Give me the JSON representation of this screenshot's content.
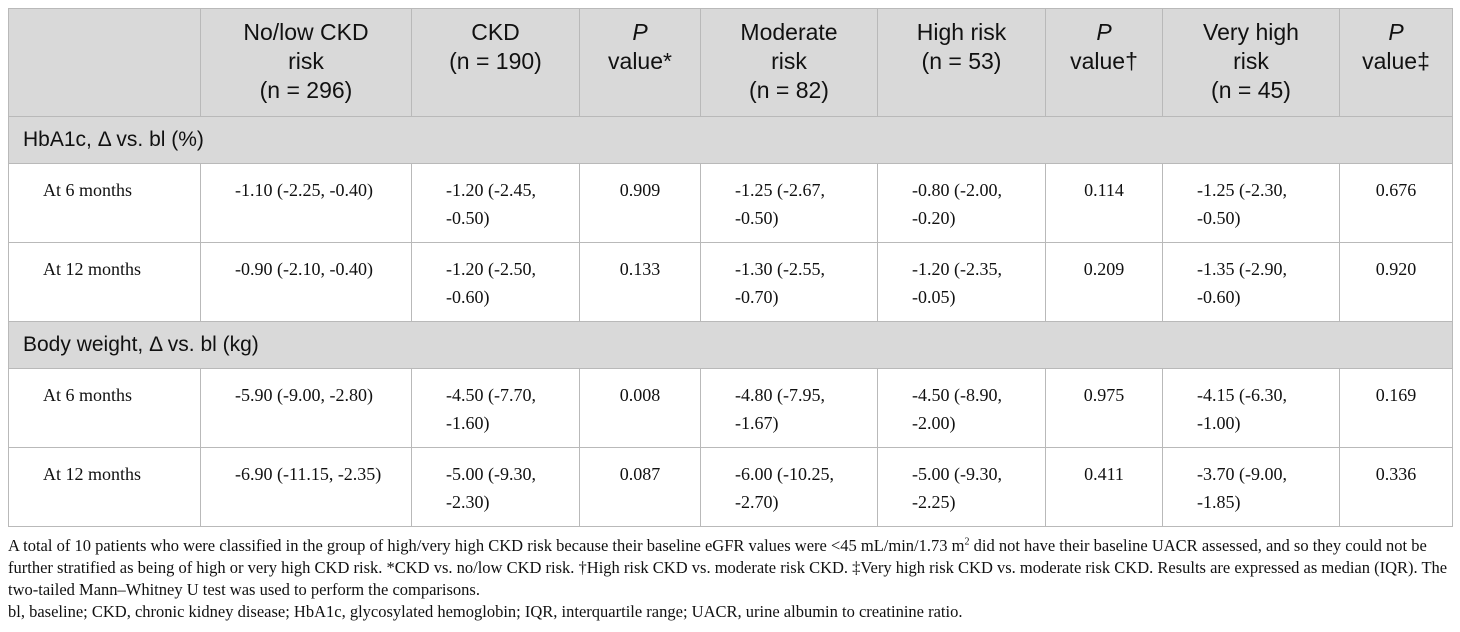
{
  "header": {
    "col0": "",
    "col1": [
      "No/low CKD",
      "risk",
      "(n = 296)"
    ],
    "col2": [
      "CKD",
      "(n = 190)"
    ],
    "col3": {
      "p": "P",
      "rest": "value*"
    },
    "col4": [
      "Moderate",
      "risk",
      "(n = 82)"
    ],
    "col5": [
      "High risk",
      "(n = 53)"
    ],
    "col6": {
      "p": "P",
      "rest": "value†"
    },
    "col7": [
      "Very high",
      "risk",
      "(n = 45)"
    ],
    "col8": {
      "p": "P",
      "rest": "value‡"
    }
  },
  "sections": [
    {
      "title": "HbA1c, Δ vs. bl (%)",
      "rows": [
        {
          "label": "At 6 months",
          "cells": [
            "-1.10 (-2.25, -0.40)",
            "-1.20 (-2.45, -0.50)",
            "0.909",
            "-1.25 (-2.67, -0.50)",
            "-0.80 (-2.00, -0.20)",
            "0.114",
            "-1.25 (-2.30, -0.50)",
            "0.676"
          ]
        },
        {
          "label": "At 12 months",
          "cells": [
            "-0.90 (-2.10, -0.40)",
            "-1.20 (-2.50, -0.60)",
            "0.133",
            "-1.30 (-2.55, -0.70)",
            "-1.20 (-2.35, -0.05)",
            "0.209",
            "-1.35 (-2.90, -0.60)",
            "0.920"
          ]
        }
      ]
    },
    {
      "title": "Body weight, Δ vs. bl (kg)",
      "rows": [
        {
          "label": "At 6 months",
          "cells": [
            "-5.90 (-9.00, -2.80)",
            "-4.50 (-7.70, -1.60)",
            "0.008",
            "-4.80 (-7.95, -1.67)",
            "-4.50 (-8.90, -2.00)",
            "0.975",
            "-4.15 (-6.30, -1.00)",
            "0.169"
          ]
        },
        {
          "label": "At 12 months",
          "cells": [
            "-6.90 (-11.15, -2.35)",
            "-5.00 (-9.30, -2.30)",
            "0.087",
            "-6.00 (-10.25, -2.70)",
            "-5.00 (-9.30, -2.25)",
            "0.411",
            "-3.70 (-9.00, -1.85)",
            "0.336"
          ]
        }
      ]
    }
  ],
  "footnote": {
    "line1_a": "A total of 10 patients who were classified in the group of high/very high CKD risk because their baseline eGFR values were <45 mL/min/1.73 m",
    "line1_sup": "2",
    "line1_b": " did not have their baseline UACR assessed, and so they could not be further stratified as being of high or very high CKD risk. *CKD vs. no/low CKD risk. †High risk CKD vs. moderate risk CKD. ‡Very high risk CKD vs. moderate risk CKD. Results are expressed as median (IQR). The two-tailed Mann–Whitney U test was used to perform the comparisons.",
    "line2": "bl, baseline; CKD, chronic kidney disease; HbA1c, glycosylated hemoglobin; IQR, interquartile range; UACR, urine albumin to creatinine ratio."
  }
}
